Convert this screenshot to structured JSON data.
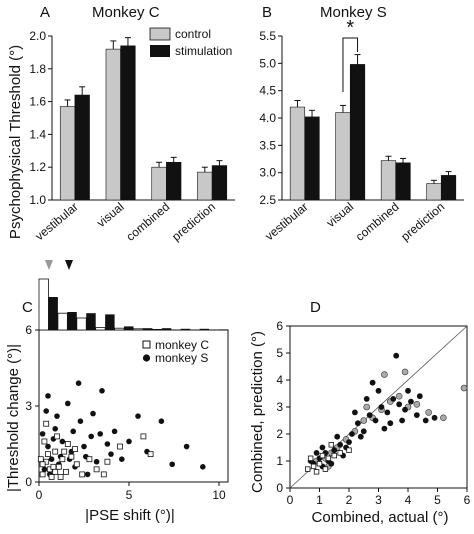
{
  "y_axis_label_ab": "Psychophysical Threshold (°)",
  "panel_a": {
    "letter": "A",
    "title": "Monkey C",
    "categories": [
      "vestibular",
      "visual",
      "combined",
      "prediction"
    ],
    "series": [
      {
        "name": "control",
        "color": "#c8c8c8",
        "values": [
          1.57,
          1.92,
          1.2,
          1.17
        ],
        "errors": [
          0.04,
          0.05,
          0.03,
          0.03
        ]
      },
      {
        "name": "stimulation",
        "color": "#111111",
        "values": [
          1.64,
          1.94,
          1.23,
          1.21
        ],
        "errors": [
          0.05,
          0.05,
          0.03,
          0.03
        ]
      }
    ],
    "ylim": [
      1.0,
      2.0
    ],
    "yticks": [
      "1.0",
      "1.2",
      "1.4",
      "1.6",
      "1.8",
      "2.0"
    ],
    "legend": [
      "control",
      "stimulation"
    ]
  },
  "panel_b": {
    "letter": "B",
    "title": "Monkey S",
    "categories": [
      "vestibular",
      "visual",
      "combined",
      "prediction"
    ],
    "series": [
      {
        "name": "control",
        "color": "#c8c8c8",
        "values": [
          4.2,
          4.1,
          3.22,
          2.8
        ],
        "errors": [
          0.12,
          0.13,
          0.08,
          0.06
        ]
      },
      {
        "name": "stimulation",
        "color": "#111111",
        "values": [
          4.02,
          4.98,
          3.18,
          2.95
        ],
        "errors": [
          0.12,
          0.18,
          0.08,
          0.07
        ]
      }
    ],
    "ylim": [
      2.5,
      5.5
    ],
    "yticks": [
      "2.5",
      "3.0",
      "3.5",
      "4.0",
      "4.5",
      "5.0",
      "5.5"
    ],
    "significance": "*"
  },
  "panel_c": {
    "letter": "C",
    "xlabel": "|PSE shift (°)|",
    "ylabel": "|Threshold change (°)|",
    "xticks": [
      "0",
      "5",
      "10"
    ],
    "yticks": [
      "0",
      "3",
      "6"
    ],
    "legend": [
      "monkey C",
      "monkey S"
    ],
    "monkey_c": [
      [
        0.2,
        0.3
      ],
      [
        0.4,
        0.8
      ],
      [
        0.6,
        0.5
      ],
      [
        0.9,
        1.2
      ],
      [
        1.1,
        0.6
      ],
      [
        1.3,
        0.9
      ],
      [
        0.3,
        1.6
      ],
      [
        0.7,
        0.2
      ],
      [
        1.5,
        0.4
      ],
      [
        1.8,
        1.0
      ],
      [
        2.1,
        0.7
      ],
      [
        0.5,
        1.1
      ],
      [
        0.8,
        0.6
      ],
      [
        1.0,
        1.8
      ],
      [
        2.4,
        0.3
      ],
      [
        2.8,
        0.9
      ],
      [
        3.2,
        0.5
      ],
      [
        0.1,
        0.9
      ],
      [
        1.6,
        1.5
      ],
      [
        3.8,
        0.8
      ],
      [
        4.5,
        1.4
      ],
      [
        6.2,
        1.1
      ],
      [
        0.4,
        2.3
      ],
      [
        1.2,
        0.2
      ],
      [
        2.0,
        1.3
      ],
      [
        0.9,
        0.4
      ],
      [
        0.2,
        0.7
      ],
      [
        1.4,
        1.2
      ],
      [
        5.8,
        1.8
      ],
      [
        3.6,
        0.3
      ]
    ],
    "monkey_s": [
      [
        0.3,
        0.5
      ],
      [
        0.5,
        1.4
      ],
      [
        0.7,
        0.9
      ],
      [
        0.9,
        2.1
      ],
      [
        1.1,
        0.7
      ],
      [
        1.3,
        1.6
      ],
      [
        1.6,
        3.1
      ],
      [
        1.8,
        1.2
      ],
      [
        2.0,
        0.6
      ],
      [
        2.3,
        2.4
      ],
      [
        2.6,
        1.0
      ],
      [
        2.9,
        1.8
      ],
      [
        3.2,
        0.8
      ],
      [
        3.5,
        3.6
      ],
      [
        3.8,
        1.5
      ],
      [
        4.2,
        2.0
      ],
      [
        4.6,
        0.9
      ],
      [
        5.0,
        1.6
      ],
      [
        5.5,
        2.6
      ],
      [
        6.0,
        1.2
      ],
      [
        6.8,
        2.4
      ],
      [
        7.4,
        0.7
      ],
      [
        8.2,
        1.4
      ],
      [
        9.1,
        0.6
      ],
      [
        0.4,
        2.8
      ],
      [
        1.0,
        2.6
      ],
      [
        1.5,
        0.4
      ],
      [
        2.2,
        3.9
      ],
      [
        2.7,
        0.3
      ],
      [
        3.0,
        2.7
      ],
      [
        1.2,
        1.0
      ],
      [
        0.6,
        0.3
      ],
      [
        0.8,
        1.7
      ],
      [
        1.9,
        2.0
      ],
      [
        4.0,
        1.1
      ],
      [
        0.2,
        1.9
      ],
      [
        2.5,
        1.4
      ],
      [
        3.4,
        1.9
      ],
      [
        1.7,
        0.9
      ],
      [
        0.5,
        3.4
      ]
    ],
    "hist_c": [
      0.85,
      0.28,
      0.2,
      0.04,
      0.03,
      0.02,
      0.01,
      0.0,
      0.0,
      0.0
    ],
    "hist_s": [
      0.55,
      0.3,
      0.28,
      0.26,
      0.06,
      0.03,
      0.03,
      0.02,
      0.02,
      0.01
    ]
  },
  "panel_d": {
    "letter": "D",
    "xlabel": "Combined, actual (°)",
    "ylabel": "Combined, prediction (°)",
    "xticks": [
      "0",
      "1",
      "2",
      "3",
      "4",
      "5",
      "6"
    ],
    "yticks": [
      "0",
      "1",
      "2",
      "3",
      "4",
      "5",
      "6"
    ],
    "points_filled": [
      [
        0.8,
        0.9
      ],
      [
        1.0,
        1.1
      ],
      [
        1.1,
        0.8
      ],
      [
        1.2,
        1.3
      ],
      [
        1.3,
        1.0
      ],
      [
        1.5,
        1.4
      ],
      [
        1.7,
        1.6
      ],
      [
        1.9,
        1.5
      ],
      [
        2.1,
        2.0
      ],
      [
        2.3,
        2.4
      ],
      [
        2.5,
        2.1
      ],
      [
        2.7,
        2.7
      ],
      [
        2.9,
        2.5
      ],
      [
        3.1,
        3.0
      ],
      [
        3.3,
        2.8
      ],
      [
        3.5,
        3.3
      ],
      [
        3.7,
        3.1
      ],
      [
        3.9,
        2.9
      ],
      [
        4.1,
        3.2
      ],
      [
        4.3,
        2.7
      ],
      [
        4.6,
        2.5
      ],
      [
        4.9,
        2.6
      ],
      [
        2.6,
        3.3
      ],
      [
        3.0,
        3.6
      ],
      [
        3.4,
        2.4
      ],
      [
        2.2,
        2.8
      ],
      [
        1.6,
        1.9
      ],
      [
        0.9,
        1.3
      ],
      [
        1.4,
        0.9
      ],
      [
        2.0,
        1.7
      ],
      [
        3.6,
        4.9
      ],
      [
        2.8,
        3.9
      ],
      [
        3.2,
        2.2
      ],
      [
        4.0,
        3.6
      ],
      [
        1.1,
        1.5
      ],
      [
        1.8,
        1.2
      ],
      [
        2.4,
        1.9
      ],
      [
        3.8,
        2.5
      ],
      [
        4.4,
        3.4
      ],
      [
        0.7,
        1.0
      ]
    ],
    "points_gray": [
      [
        0.9,
        1.0
      ],
      [
        1.2,
        1.1
      ],
      [
        1.4,
        1.3
      ],
      [
        1.6,
        1.5
      ],
      [
        1.9,
        1.8
      ],
      [
        2.2,
        2.1
      ],
      [
        2.5,
        2.5
      ],
      [
        2.8,
        2.6
      ],
      [
        3.1,
        2.9
      ],
      [
        3.4,
        3.2
      ],
      [
        3.7,
        3.4
      ],
      [
        4.0,
        3.0
      ],
      [
        4.3,
        3.1
      ],
      [
        4.7,
        2.8
      ],
      [
        5.2,
        2.6
      ],
      [
        5.9,
        3.7
      ],
      [
        3.2,
        4.2
      ],
      [
        2.6,
        3.0
      ],
      [
        1.3,
        0.8
      ],
      [
        3.9,
        4.3
      ]
    ],
    "points_open": [
      [
        0.6,
        0.7
      ],
      [
        0.8,
        0.8
      ],
      [
        1.0,
        0.9
      ],
      [
        1.1,
        1.2
      ],
      [
        1.3,
        1.1
      ],
      [
        1.5,
        1.2
      ],
      [
        0.7,
        1.1
      ],
      [
        0.9,
        0.6
      ],
      [
        1.2,
        0.7
      ],
      [
        1.7,
        1.3
      ],
      [
        2.0,
        1.4
      ],
      [
        1.4,
        1.6
      ]
    ],
    "unity_line": [
      [
        0,
        0
      ],
      [
        6,
        6
      ]
    ]
  }
}
